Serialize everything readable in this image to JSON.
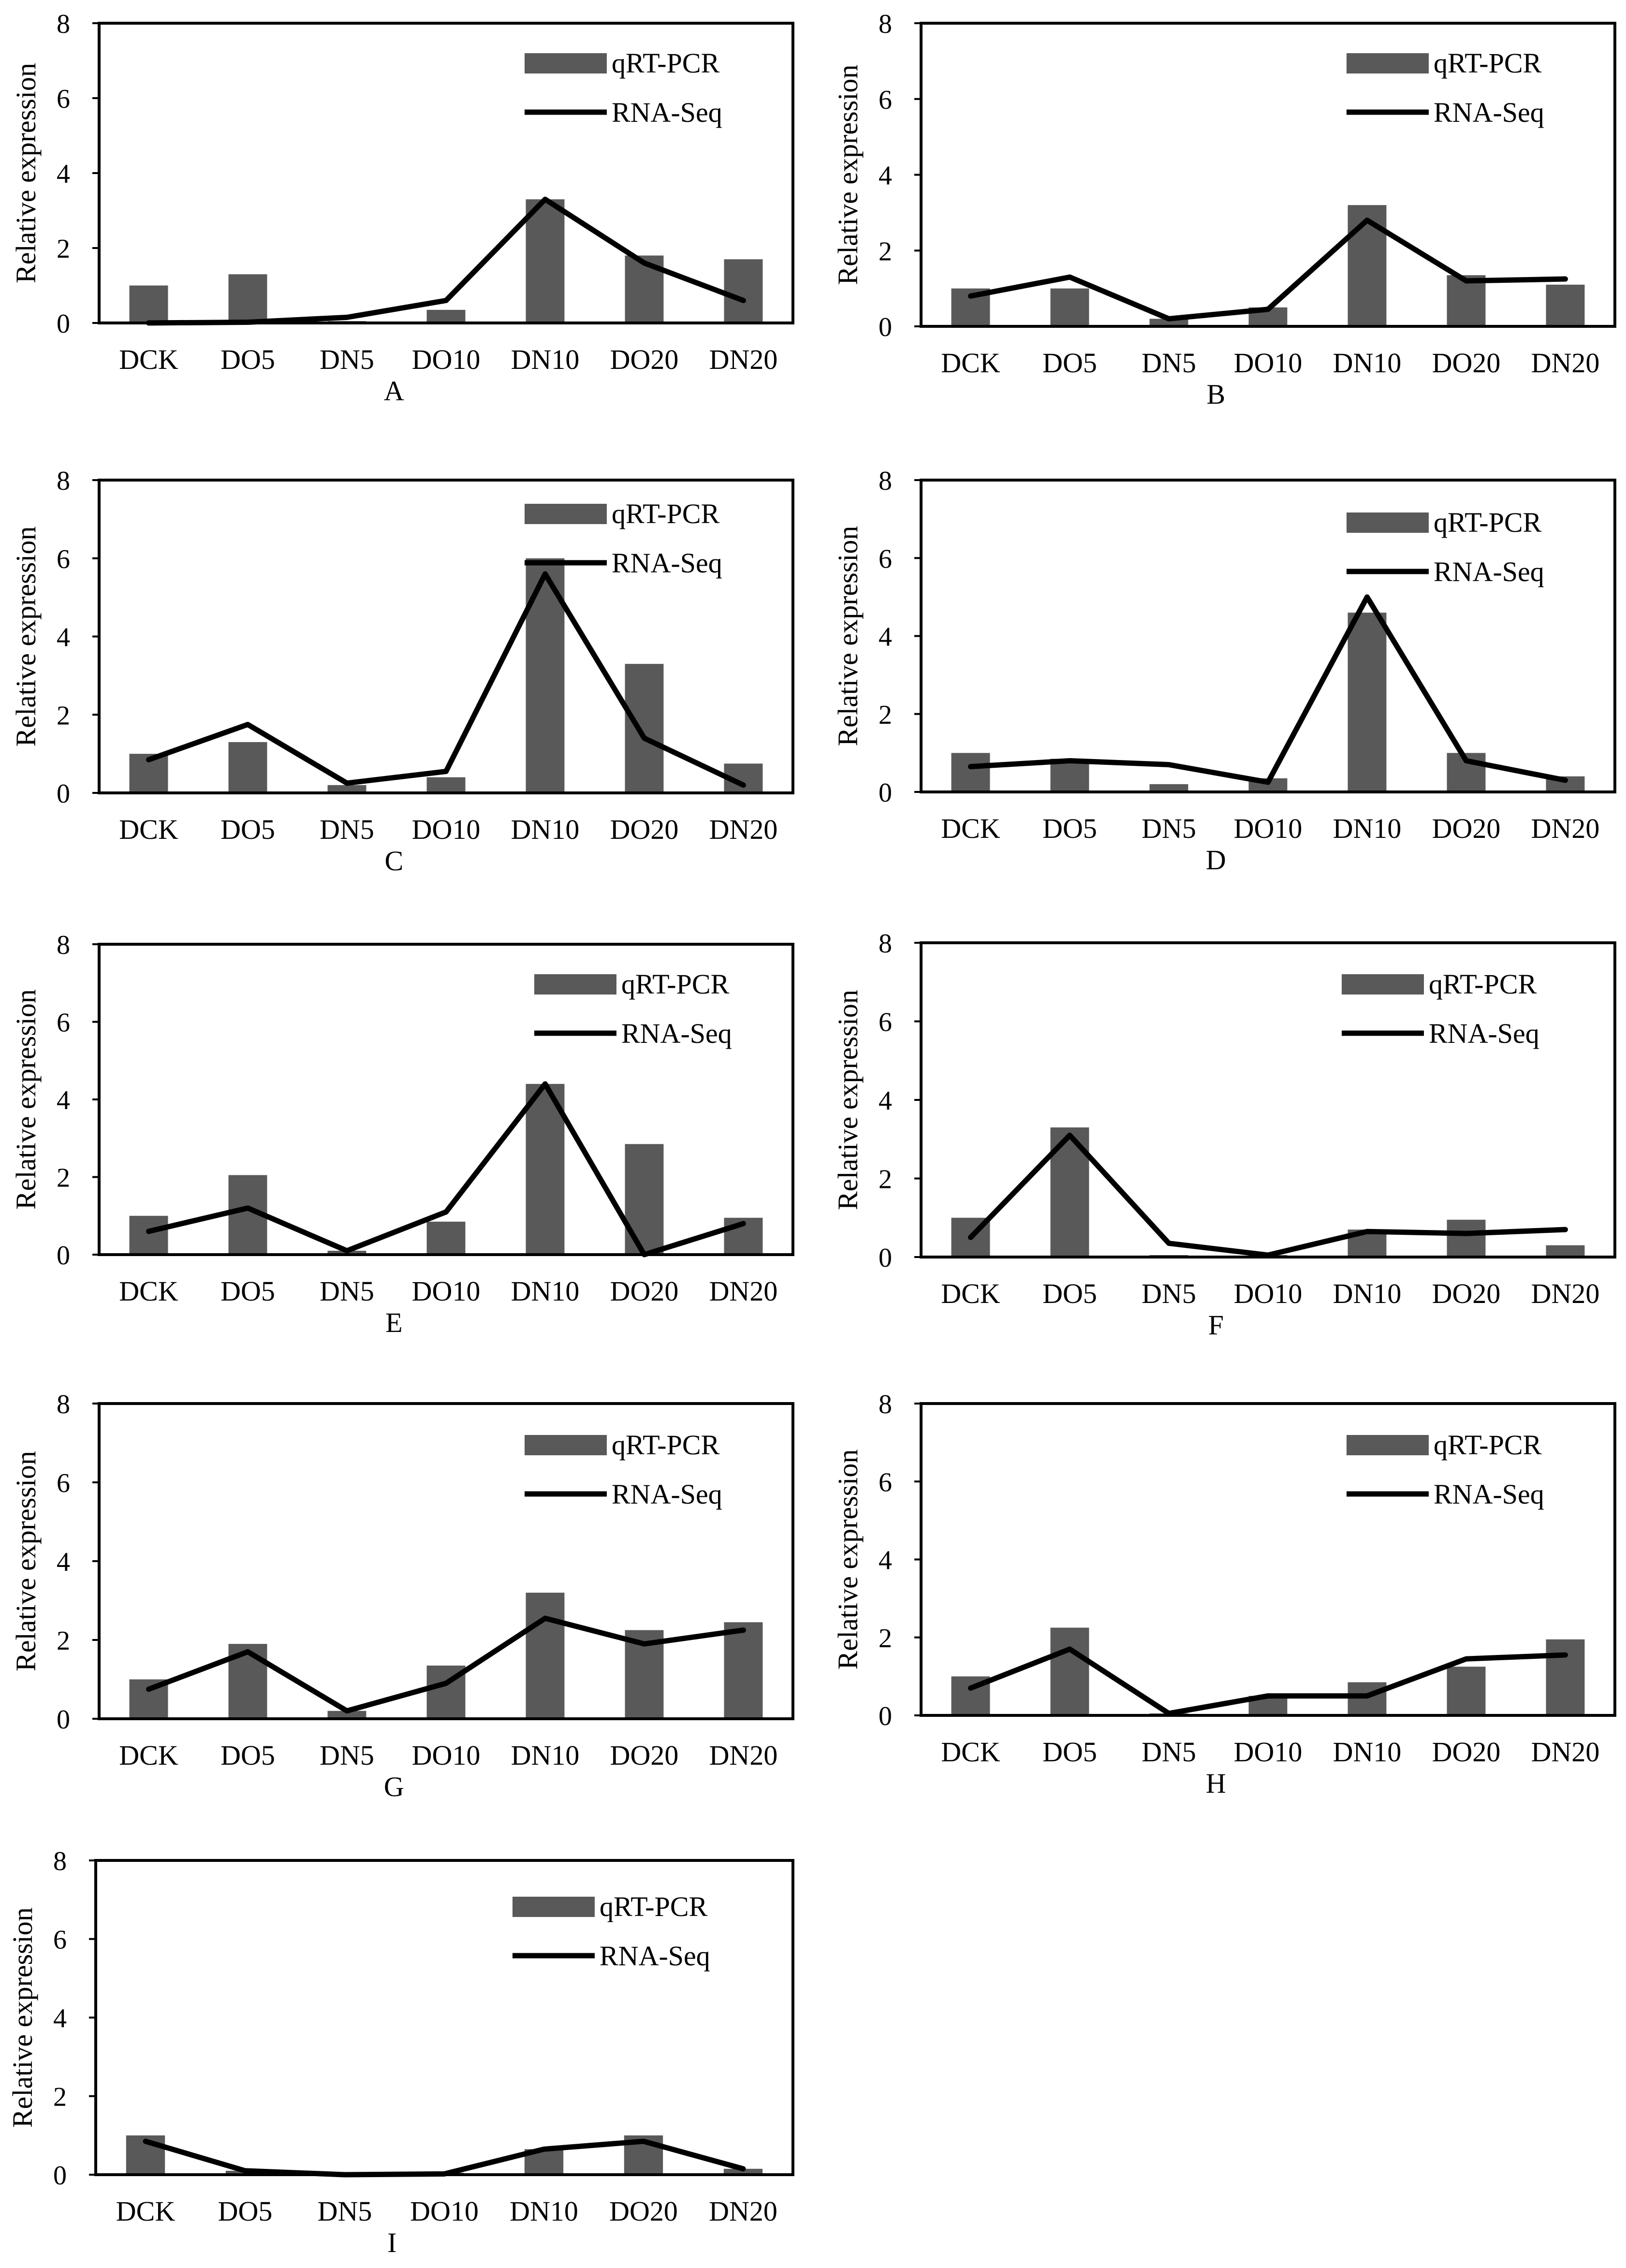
{
  "figure": {
    "colors": {
      "bar": "#595959",
      "line": "#000000",
      "frame": "#000000"
    }
  },
  "chart_data": [
    {
      "type": "bar+line",
      "panel": "A",
      "ylabel": "Relative expression",
      "ylim": [
        0,
        8
      ],
      "yticks": [
        "0",
        "2",
        "4",
        "6",
        "8"
      ],
      "categories": [
        "DCK",
        "DO5",
        "DN5",
        "DO10",
        "DN10",
        "DO20",
        "DN20"
      ],
      "legend": [
        "qRT-PCR",
        "RNA-Seq"
      ],
      "series": [
        {
          "name": "qRT-PCR",
          "kind": "bar",
          "values": [
            1.0,
            1.3,
            0.05,
            0.35,
            3.3,
            1.8,
            1.7
          ]
        },
        {
          "name": "RNA-Seq",
          "kind": "line",
          "values": [
            0.0,
            0.02,
            0.15,
            0.6,
            3.3,
            1.6,
            0.6
          ]
        }
      ]
    },
    {
      "type": "bar+line",
      "panel": "B",
      "ylabel": "Relative expression",
      "ylim": [
        0,
        8
      ],
      "yticks": [
        "0",
        "2",
        "4",
        "6",
        "8"
      ],
      "categories": [
        "DCK",
        "DO5",
        "DN5",
        "DO10",
        "DN10",
        "DO20",
        "DN20"
      ],
      "legend": [
        "qRT-PCR",
        "RNA-Seq"
      ],
      "series": [
        {
          "name": "qRT-PCR",
          "kind": "bar",
          "values": [
            1.0,
            1.0,
            0.2,
            0.5,
            3.2,
            1.35,
            1.1
          ]
        },
        {
          "name": "RNA-Seq",
          "kind": "line",
          "values": [
            0.8,
            1.3,
            0.2,
            0.45,
            2.8,
            1.2,
            1.25
          ]
        }
      ]
    },
    {
      "type": "bar+line",
      "panel": "C",
      "ylabel": "Relative expression",
      "ylim": [
        0,
        8
      ],
      "yticks": [
        "0",
        "2",
        "4",
        "6",
        "8"
      ],
      "categories": [
        "DCK",
        "DO5",
        "DN5",
        "DO10",
        "DN10",
        "DO20",
        "DN20"
      ],
      "legend": [
        "qRT-PCR",
        "RNA-Seq"
      ],
      "series": [
        {
          "name": "qRT-PCR",
          "kind": "bar",
          "values": [
            1.0,
            1.3,
            0.2,
            0.4,
            6.0,
            3.3,
            0.75
          ]
        },
        {
          "name": "RNA-Seq",
          "kind": "line",
          "values": [
            0.85,
            1.75,
            0.25,
            0.55,
            5.6,
            1.4,
            0.2
          ]
        }
      ]
    },
    {
      "type": "bar+line",
      "panel": "D",
      "ylabel": "Relative expression",
      "ylim": [
        0,
        8
      ],
      "yticks": [
        "0",
        "2",
        "4",
        "6",
        "8"
      ],
      "categories": [
        "DCK",
        "DO5",
        "DN5",
        "DO10",
        "DN10",
        "DO20",
        "DN20"
      ],
      "legend": [
        "qRT-PCR",
        "RNA-Seq"
      ],
      "series": [
        {
          "name": "qRT-PCR",
          "kind": "bar",
          "values": [
            1.0,
            0.85,
            0.2,
            0.35,
            4.6,
            1.0,
            0.4
          ]
        },
        {
          "name": "RNA-Seq",
          "kind": "line",
          "values": [
            0.65,
            0.8,
            0.7,
            0.25,
            5.0,
            0.8,
            0.3
          ]
        }
      ]
    },
    {
      "type": "bar+line",
      "panel": "E",
      "ylabel": "Relative expression",
      "ylim": [
        0,
        8
      ],
      "yticks": [
        "0",
        "2",
        "4",
        "6",
        "8"
      ],
      "categories": [
        "DCK",
        "DO5",
        "DN5",
        "DO10",
        "DN10",
        "DO20",
        "DN20"
      ],
      "legend": [
        "qRT-PCR",
        "RNA-Seq"
      ],
      "series": [
        {
          "name": "qRT-PCR",
          "kind": "bar",
          "values": [
            1.0,
            2.05,
            0.1,
            0.85,
            4.4,
            2.85,
            0.95
          ]
        },
        {
          "name": "RNA-Seq",
          "kind": "line",
          "values": [
            0.6,
            1.2,
            0.1,
            1.1,
            4.4,
            0.0,
            0.8
          ]
        }
      ]
    },
    {
      "type": "bar+line",
      "panel": "F",
      "ylabel": "Relative expression",
      "ylim": [
        0,
        8
      ],
      "yticks": [
        "0",
        "2",
        "4",
        "6",
        "8"
      ],
      "categories": [
        "DCK",
        "DO5",
        "DN5",
        "DO10",
        "DN10",
        "DO20",
        "DN20"
      ],
      "legend": [
        "qRT-PCR",
        "RNA-Seq"
      ],
      "series": [
        {
          "name": "qRT-PCR",
          "kind": "bar",
          "values": [
            1.0,
            3.3,
            0.05,
            0.05,
            0.7,
            0.95,
            0.3
          ]
        },
        {
          "name": "RNA-Seq",
          "kind": "line",
          "values": [
            0.5,
            3.1,
            0.35,
            0.05,
            0.65,
            0.6,
            0.7
          ]
        }
      ]
    },
    {
      "type": "bar+line",
      "panel": "G",
      "ylabel": "Relative expression",
      "ylim": [
        0,
        8
      ],
      "yticks": [
        "0",
        "2",
        "4",
        "6",
        "8"
      ],
      "categories": [
        "DCK",
        "DO5",
        "DN5",
        "DO10",
        "DN10",
        "DO20",
        "DN20"
      ],
      "legend": [
        "qRT-PCR",
        "RNA-Seq"
      ],
      "series": [
        {
          "name": "qRT-PCR",
          "kind": "bar",
          "values": [
            1.0,
            1.9,
            0.2,
            1.35,
            3.2,
            2.25,
            2.45
          ]
        },
        {
          "name": "RNA-Seq",
          "kind": "line",
          "values": [
            0.75,
            1.7,
            0.2,
            0.9,
            2.55,
            1.9,
            2.25
          ]
        }
      ]
    },
    {
      "type": "bar+line",
      "panel": "H",
      "ylabel": "Relative expression",
      "ylim": [
        0,
        8
      ],
      "yticks": [
        "0",
        "2",
        "4",
        "6",
        "8"
      ],
      "categories": [
        "DCK",
        "DO5",
        "DN5",
        "DO10",
        "DN10",
        "DO20",
        "DN20"
      ],
      "legend": [
        "qRT-PCR",
        "RNA-Seq"
      ],
      "series": [
        {
          "name": "qRT-PCR",
          "kind": "bar",
          "values": [
            1.0,
            2.25,
            0.05,
            0.5,
            0.85,
            1.25,
            1.95
          ]
        },
        {
          "name": "RNA-Seq",
          "kind": "line",
          "values": [
            0.7,
            1.7,
            0.05,
            0.5,
            0.5,
            1.45,
            1.55
          ]
        }
      ]
    },
    {
      "type": "bar+line",
      "panel": "I",
      "ylabel": "Relative expression",
      "ylim": [
        0,
        8
      ],
      "yticks": [
        "0",
        "2",
        "4",
        "6",
        "8"
      ],
      "categories": [
        "DCK",
        "DO5",
        "DN5",
        "DO10",
        "DN10",
        "DO20",
        "DN20"
      ],
      "legend": [
        "qRT-PCR",
        "RNA-Seq"
      ],
      "series": [
        {
          "name": "qRT-PCR",
          "kind": "bar",
          "values": [
            1.0,
            0.1,
            0.05,
            0.05,
            0.65,
            1.0,
            0.15
          ]
        },
        {
          "name": "RNA-Seq",
          "kind": "line",
          "values": [
            0.85,
            0.1,
            0.0,
            0.02,
            0.65,
            0.85,
            0.15
          ]
        }
      ]
    }
  ]
}
